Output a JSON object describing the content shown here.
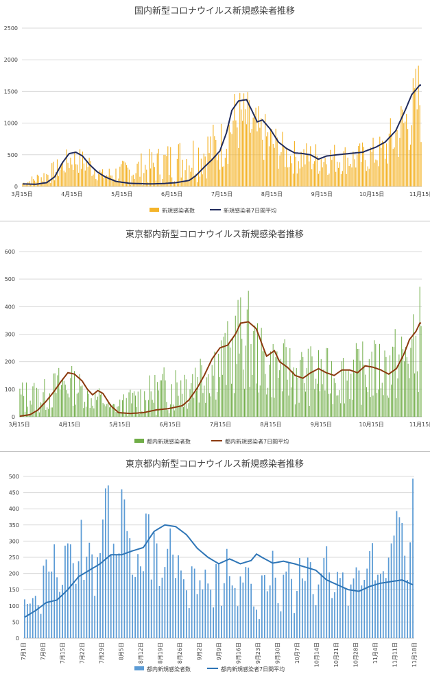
{
  "chart_data": [
    {
      "type": "bar",
      "title": "国内新型コロナウイルス新規感染者推移",
      "ylim": [
        0,
        2500
      ],
      "yticks": [
        "0",
        "500",
        "1000",
        "1500",
        "2000",
        "2500"
      ],
      "xticks": [
        "3月15日",
        "4月15日",
        "5月15日",
        "6月15日",
        "7月15日",
        "8月15日",
        "9月15日",
        "10月15日",
        "11月15日"
      ],
      "series": [
        {
          "name": "新規感染者数",
          "kind": "bar",
          "color": "#F4B42A"
        },
        {
          "name": "新規感染者7日間平均",
          "kind": "line",
          "color": "#1F2A5C"
        }
      ],
      "daily_avg_anchors": [
        [
          0,
          40
        ],
        [
          10,
          35
        ],
        [
          18,
          60
        ],
        [
          24,
          150
        ],
        [
          30,
          380
        ],
        [
          35,
          520
        ],
        [
          40,
          540
        ],
        [
          45,
          480
        ],
        [
          50,
          350
        ],
        [
          56,
          230
        ],
        [
          62,
          150
        ],
        [
          70,
          80
        ],
        [
          80,
          50
        ],
        [
          95,
          40
        ],
        [
          105,
          45
        ],
        [
          115,
          60
        ],
        [
          125,
          95
        ],
        [
          130,
          170
        ],
        [
          136,
          300
        ],
        [
          142,
          420
        ],
        [
          148,
          560
        ],
        [
          153,
          850
        ],
        [
          157,
          1200
        ],
        [
          162,
          1350
        ],
        [
          168,
          1370
        ],
        [
          172,
          1200
        ],
        [
          176,
          1020
        ],
        [
          180,
          1050
        ],
        [
          186,
          900
        ],
        [
          192,
          700
        ],
        [
          198,
          600
        ],
        [
          204,
          530
        ],
        [
          210,
          520
        ],
        [
          216,
          500
        ],
        [
          222,
          430
        ],
        [
          228,
          480
        ],
        [
          236,
          500
        ],
        [
          245,
          520
        ],
        [
          255,
          540
        ],
        [
          265,
          620
        ],
        [
          272,
          700
        ],
        [
          280,
          880
        ],
        [
          287,
          1200
        ],
        [
          292,
          1450
        ],
        [
          298,
          1600
        ]
      ],
      "daily_peaks": [
        [
          0,
          80
        ],
        [
          30,
          500
        ],
        [
          36,
          680
        ],
        [
          40,
          650
        ],
        [
          45,
          600
        ],
        [
          51,
          550
        ],
        [
          60,
          280
        ],
        [
          150,
          1100
        ],
        [
          158,
          1560
        ],
        [
          165,
          1600
        ],
        [
          172,
          1400
        ],
        [
          180,
          1200
        ],
        [
          186,
          1100
        ],
        [
          200,
          740
        ],
        [
          230,
          720
        ],
        [
          250,
          680
        ],
        [
          270,
          850
        ],
        [
          285,
          1500
        ],
        [
          292,
          1730
        ],
        [
          298,
          2200
        ]
      ]
    },
    {
      "type": "bar",
      "title": "東京都内新型コロナウイルス新規感染者推移",
      "ylim": [
        0,
        600
      ],
      "yticks": [
        "0",
        "100",
        "200",
        "300",
        "400",
        "500",
        "600"
      ],
      "xticks": [
        "3月15日",
        "4月15日",
        "5月15日",
        "6月15日",
        "7月15日",
        "8月15日",
        "9月15日",
        "10月15日",
        "11月15日"
      ],
      "series": [
        {
          "name": "都内新規感染者数",
          "kind": "bar",
          "color": "#70AD47"
        },
        {
          "name": "都内新規感染者7日間平均",
          "kind": "line",
          "color": "#8B3A0F"
        }
      ],
      "daily_avg_anchors": [
        [
          0,
          2
        ],
        [
          8,
          8
        ],
        [
          14,
          25
        ],
        [
          20,
          55
        ],
        [
          26,
          90
        ],
        [
          32,
          130
        ],
        [
          37,
          160
        ],
        [
          42,
          155
        ],
        [
          48,
          130
        ],
        [
          52,
          100
        ],
        [
          56,
          80
        ],
        [
          60,
          95
        ],
        [
          64,
          85
        ],
        [
          70,
          40
        ],
        [
          76,
          15
        ],
        [
          85,
          12
        ],
        [
          95,
          15
        ],
        [
          105,
          25
        ],
        [
          115,
          30
        ],
        [
          125,
          40
        ],
        [
          130,
          60
        ],
        [
          136,
          100
        ],
        [
          142,
          150
        ],
        [
          148,
          210
        ],
        [
          154,
          250
        ],
        [
          160,
          260
        ],
        [
          166,
          300
        ],
        [
          170,
          340
        ],
        [
          176,
          345
        ],
        [
          182,
          320
        ],
        [
          186,
          270
        ],
        [
          190,
          220
        ],
        [
          196,
          240
        ],
        [
          200,
          200
        ],
        [
          206,
          180
        ],
        [
          212,
          150
        ],
        [
          218,
          140
        ],
        [
          224,
          160
        ],
        [
          230,
          175
        ],
        [
          236,
          160
        ],
        [
          242,
          150
        ],
        [
          248,
          170
        ],
        [
          254,
          170
        ],
        [
          260,
          160
        ],
        [
          266,
          185
        ],
        [
          272,
          180
        ],
        [
          278,
          170
        ],
        [
          284,
          155
        ],
        [
          290,
          175
        ],
        [
          296,
          230
        ],
        [
          300,
          280
        ],
        [
          305,
          310
        ],
        [
          308,
          340
        ]
      ],
      "daily_peaks": [
        [
          20,
          140
        ],
        [
          30,
          190
        ],
        [
          34,
          200
        ],
        [
          38,
          170
        ],
        [
          52,
          120
        ],
        [
          70,
          55
        ],
        [
          155,
          330
        ],
        [
          164,
          380
        ],
        [
          168,
          470
        ],
        [
          172,
          430
        ],
        [
          176,
          460
        ],
        [
          180,
          370
        ],
        [
          190,
          300
        ],
        [
          214,
          270
        ],
        [
          240,
          250
        ],
        [
          270,
          280
        ],
        [
          296,
          350
        ],
        [
          300,
          390
        ],
        [
          306,
          380
        ],
        [
          308,
          493
        ]
      ]
    },
    {
      "type": "bar",
      "title": "東京都内新型コロナウイルス新規感染者推移",
      "ylim": [
        0,
        500
      ],
      "yticks": [
        "0",
        "50",
        "100",
        "150",
        "200",
        "250",
        "300",
        "350",
        "400",
        "450",
        "500"
      ],
      "xticks": [
        "7月1日",
        "7月8日",
        "7月15日",
        "7月22日",
        "7月29日",
        "8月5日",
        "8月12日",
        "8月19日",
        "8月26日",
        "9月2日",
        "9月9日",
        "9月16日",
        "9月23日",
        "9月30日",
        "10月7日",
        "10月14日",
        "10月21日",
        "10月28日",
        "11月4日",
        "11月11日",
        "11月18日"
      ],
      "series": [
        {
          "name": "都内新規感染者数",
          "kind": "bar",
          "color": "#5B9BD5"
        },
        {
          "name": "都内新規感染者7日間平均",
          "kind": "line",
          "color": "#2E75B6"
        }
      ],
      "daily_values": [
        120,
        106,
        107,
        124,
        131,
        102,
        75,
        224,
        243,
        206,
        206,
        290,
        188,
        143,
        165,
        286,
        293,
        290,
        232,
        168,
        238,
        366,
        180,
        252,
        295,
        259,
        131,
        250,
        263,
        367,
        463,
        472,
        259,
        292,
        258,
        262,
        460,
        429,
        331,
        309,
        196,
        189,
        260,
        222,
        207,
        385,
        383,
        181,
        327,
        293,
        161,
        187,
        220,
        276,
        339,
        258,
        186,
        256,
        209,
        182,
        148,
        93,
        222,
        215,
        136,
        179,
        151,
        212,
        169,
        150,
        95,
        229,
        233,
        100,
        170,
        276,
        192,
        163,
        155,
        99,
        191,
        172,
        220,
        218,
        168,
        98,
        88,
        59,
        194,
        195,
        145,
        163,
        270,
        187,
        108,
        83,
        196,
        206,
        235,
        183,
        78,
        146,
        248,
        185,
        177,
        249,
        235,
        136,
        102,
        166,
        200,
        248,
        284,
        203,
        124,
        142,
        205,
        186,
        203,
        154,
        100,
        166,
        185,
        219,
        209,
        163,
        180,
        215,
        269,
        294,
        179,
        196,
        199,
        207,
        186,
        249,
        293,
        317,
        393,
        374,
        356,
        255,
        180,
        296,
        493
      ],
      "avg_anchors": [
        [
          0,
          65
        ],
        [
          4,
          85
        ],
        [
          8,
          110
        ],
        [
          12,
          118
        ],
        [
          16,
          150
        ],
        [
          20,
          190
        ],
        [
          24,
          210
        ],
        [
          28,
          230
        ],
        [
          32,
          258
        ],
        [
          36,
          258
        ],
        [
          40,
          270
        ],
        [
          44,
          280
        ],
        [
          48,
          330
        ],
        [
          52,
          350
        ],
        [
          56,
          345
        ],
        [
          60,
          320
        ],
        [
          64,
          278
        ],
        [
          68,
          250
        ],
        [
          72,
          230
        ],
        [
          76,
          245
        ],
        [
          80,
          230
        ],
        [
          84,
          240
        ],
        [
          86,
          260
        ],
        [
          88,
          250
        ],
        [
          92,
          232
        ],
        [
          96,
          238
        ],
        [
          100,
          230
        ],
        [
          104,
          220
        ],
        [
          108,
          210
        ],
        [
          112,
          180
        ],
        [
          116,
          165
        ],
        [
          120,
          150
        ],
        [
          124,
          145
        ],
        [
          128,
          160
        ],
        [
          132,
          170
        ],
        [
          136,
          175
        ],
        [
          140,
          180
        ],
        [
          144,
          165
        ],
        [
          148,
          170
        ],
        [
          152,
          145
        ],
        [
          156,
          150
        ],
        [
          160,
          150
        ],
        [
          164,
          180
        ],
        [
          168,
          190
        ],
        [
          172,
          175
        ],
        [
          176,
          165
        ],
        [
          180,
          160
        ],
        [
          184,
          170
        ],
        [
          188,
          175
        ],
        [
          192,
          170
        ],
        [
          196,
          168
        ],
        [
          200,
          160
        ],
        [
          204,
          155
        ],
        [
          208,
          160
        ],
        [
          212,
          165
        ],
        [
          216,
          170
        ],
        [
          220,
          165
        ],
        [
          224,
          180
        ],
        [
          228,
          200
        ],
        [
          232,
          240
        ],
        [
          236,
          280
        ],
        [
          240,
          300
        ],
        [
          244,
          310
        ],
        [
          248,
          320
        ],
        [
          251,
          335
        ]
      ]
    }
  ]
}
